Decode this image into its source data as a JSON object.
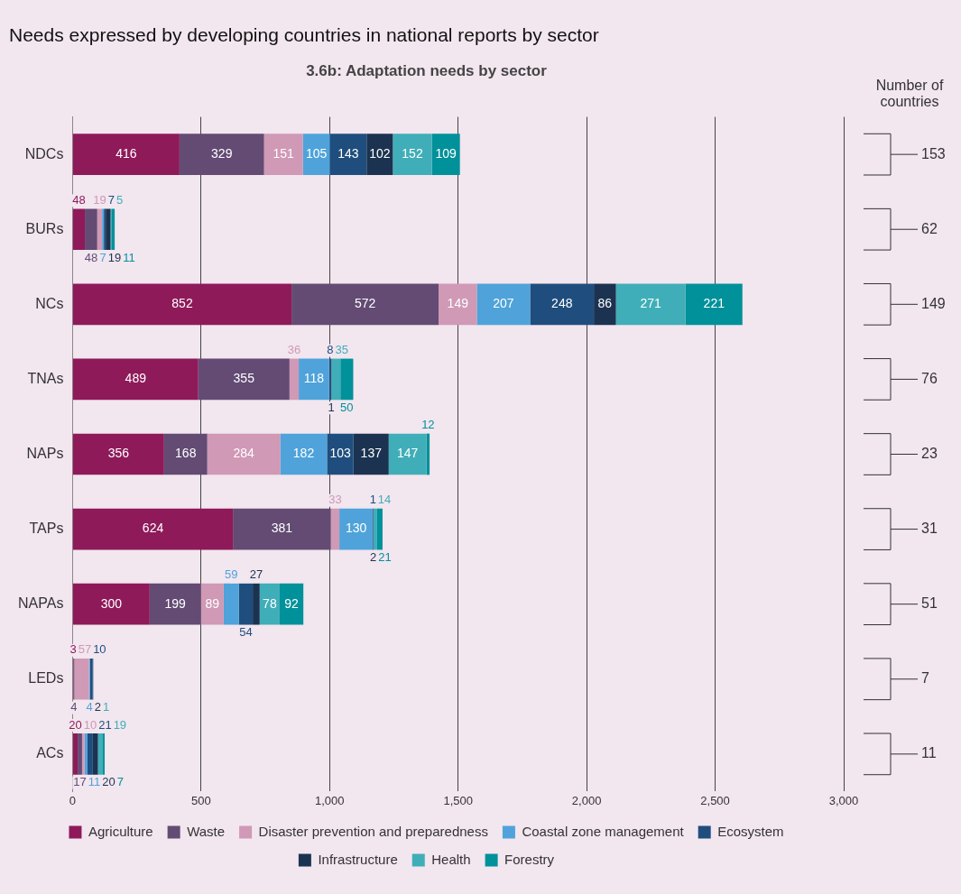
{
  "chart_data": {
    "type": "bar",
    "orientation": "horizontal",
    "stacked": true,
    "title": "Needs expressed by developing countries in national reports by sector",
    "subtitle": "3.6b: Adaptation needs by sector",
    "categories": [
      "NDCs",
      "BURs",
      "NCs",
      "TNAs",
      "NAPs",
      "TAPs",
      "NAPAs",
      "LEDs",
      "ACs"
    ],
    "series": [
      {
        "name": "Agriculture",
        "color": "#8e1a5a",
        "values": [
          416,
          48,
          852,
          489,
          356,
          624,
          300,
          3,
          20
        ]
      },
      {
        "name": "Waste",
        "color": "#634b74",
        "values": [
          329,
          48,
          572,
          355,
          168,
          381,
          199,
          4,
          17
        ]
      },
      {
        "name": "Disaster prevention and preparedness",
        "color": "#d099b6",
        "values": [
          151,
          19,
          149,
          36,
          284,
          33,
          89,
          57,
          10
        ]
      },
      {
        "name": "Coastal zone management",
        "color": "#4fa3da",
        "values": [
          105,
          7,
          207,
          118,
          182,
          130,
          59,
          4,
          11
        ]
      },
      {
        "name": "Ecosystem",
        "color": "#1f4e7e",
        "values": [
          143,
          7,
          248,
          8,
          103,
          1,
          54,
          10,
          21
        ]
      },
      {
        "name": "Infrastructure",
        "color": "#1b3350",
        "values": [
          102,
          19,
          86,
          1,
          137,
          2,
          27,
          2,
          20
        ]
      },
      {
        "name": "Health",
        "color": "#40aeb8",
        "values": [
          152,
          5,
          271,
          35,
          147,
          14,
          78,
          1,
          19
        ]
      },
      {
        "name": "Forestry",
        "color": "#00919a",
        "values": [
          109,
          11,
          221,
          50,
          12,
          21,
          92,
          null,
          7
        ]
      }
    ],
    "xlim": [
      0,
      3000
    ],
    "xticks": [
      0,
      500,
      {
        "value": 1000,
        "label": "1,000"
      },
      {
        "value": 1500,
        "label": "1,500"
      },
      {
        "value": 2000,
        "label": "2,000"
      },
      {
        "value": 2500,
        "label": "2,500"
      },
      {
        "value": 3000,
        "label": "3,000"
      }
    ],
    "grid": "x",
    "legend": "bottom",
    "data_labels": true,
    "annotations": [
      "Number of countries",
      "153",
      "62",
      "149",
      "76",
      "23",
      "31",
      "51",
      "7",
      "11"
    ]
  }
}
